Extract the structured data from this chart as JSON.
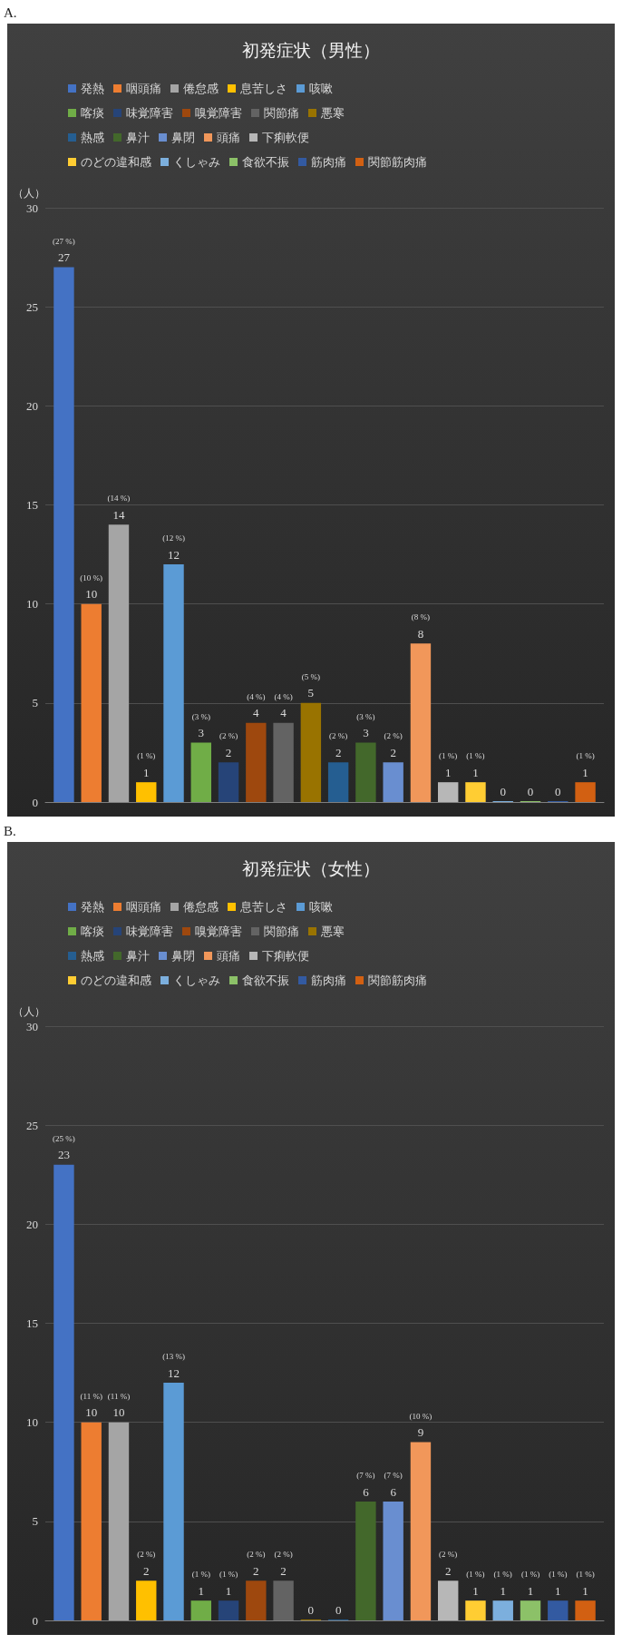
{
  "chart_data": [
    {
      "type": "bar",
      "title": "初発症状（男性）",
      "ylabel": "（人）",
      "categories": [
        null
      ],
      "ylim": [
        0,
        30
      ],
      "yticks": [
        0,
        5,
        10,
        15,
        20,
        25,
        30
      ],
      "grid": "y",
      "legend": "top",
      "tick_labels": "y",
      "data_labels": true,
      "annotations": [
        "A.",
        {
          "text": "(27 %)",
          "y": 27
        },
        {
          "text": "(10 %)",
          "y": 10
        },
        {
          "text": "(14 %)",
          "y": 14
        },
        {
          "text": "(1 %)",
          "y": 1
        },
        {
          "text": "(12 %)",
          "y": 12
        },
        {
          "text": "(3 %)",
          "y": 3
        },
        {
          "text": "(2 %)",
          "y": 2
        },
        {
          "text": "(4 %)",
          "y": 4
        },
        {
          "text": "(4 %)",
          "y": 4
        },
        {
          "text": "(5 %)",
          "y": 5
        },
        {
          "text": "(2 %)",
          "y": 2
        },
        {
          "text": "(3 %)",
          "y": 3
        },
        {
          "text": "(2 %)",
          "y": 2
        },
        {
          "text": "(8 %)",
          "y": 8
        },
        {
          "text": "(1 %)",
          "y": 1
        },
        {
          "text": "(1 %)",
          "y": 1
        },
        {
          "text": "(1 %)",
          "y": 1
        }
      ],
      "series": [
        {
          "name": "発熱",
          "color": "#4472c4",
          "values": [
            27
          ]
        },
        {
          "name": "咽頭痛",
          "color": "#ed7d31",
          "values": [
            10
          ]
        },
        {
          "name": "倦怠感",
          "color": "#a5a5a5",
          "values": [
            14
          ]
        },
        {
          "name": "息苦しさ",
          "color": "#ffc000",
          "values": [
            1
          ]
        },
        {
          "name": "咳嗽",
          "color": "#5b9bd5",
          "values": [
            12
          ]
        },
        {
          "name": "喀痰",
          "color": "#70ad47",
          "values": [
            3
          ]
        },
        {
          "name": "味覚障害",
          "color": "#264478",
          "values": [
            2
          ]
        },
        {
          "name": "嗅覚障害",
          "color": "#9e480e",
          "values": [
            4
          ]
        },
        {
          "name": "関節痛",
          "color": "#636363",
          "values": [
            4
          ]
        },
        {
          "name": "悪寒",
          "color": "#997300",
          "values": [
            5
          ]
        },
        {
          "name": "熱感",
          "color": "#255e91",
          "values": [
            2
          ]
        },
        {
          "name": "鼻汁",
          "color": "#43682b",
          "values": [
            3
          ]
        },
        {
          "name": "鼻閉",
          "color": "#698ed0",
          "values": [
            2
          ]
        },
        {
          "name": "頭痛",
          "color": "#f1975a",
          "values": [
            8
          ]
        },
        {
          "name": "下痢軟便",
          "color": "#b7b7b7",
          "values": [
            1
          ]
        },
        {
          "name": "のどの違和感",
          "color": "#ffcd33",
          "values": [
            1
          ]
        },
        {
          "name": "くしゃみ",
          "color": "#7cafdd",
          "values": [
            0
          ]
        },
        {
          "name": "食欲不振",
          "color": "#8cc168",
          "values": [
            0
          ]
        },
        {
          "name": "筋肉痛",
          "color": "#335aa1",
          "values": [
            0
          ]
        },
        {
          "name": "関節筋肉痛",
          "color": "#d26012",
          "values": [
            1
          ]
        }
      ]
    },
    {
      "type": "bar",
      "title": "初発症状（女性）",
      "ylabel": "（人）",
      "categories": [
        null
      ],
      "ylim": [
        0,
        30
      ],
      "yticks": [
        0,
        5,
        10,
        15,
        20,
        25,
        30
      ],
      "grid": "y",
      "legend": "top",
      "tick_labels": "y",
      "data_labels": true,
      "annotations": [
        "B.",
        {
          "text": "(25 %)",
          "y": 23
        },
        {
          "text": "(11 %)",
          "y": 10
        },
        {
          "text": "(11 %)",
          "y": 10
        },
        {
          "text": "(2 %)",
          "y": 2
        },
        {
          "text": "(13 %)",
          "y": 12
        },
        {
          "text": "(1 %)",
          "y": 1
        },
        {
          "text": "(1 %)",
          "y": 1
        },
        {
          "text": "(2 %)",
          "y": 2
        },
        {
          "text": "(2 %)",
          "y": 2
        },
        {
          "text": "(7 %)",
          "y": 6
        },
        {
          "text": "(7 %)",
          "y": 6
        },
        {
          "text": "(10 %)",
          "y": 9
        },
        {
          "text": "(2 %)",
          "y": 2
        },
        {
          "text": "(1 %)",
          "y": 1
        },
        {
          "text": "(1 %)",
          "y": 1
        },
        {
          "text": "(1 %)",
          "y": 1
        },
        {
          "text": "(1 %)",
          "y": 1
        },
        {
          "text": "(1 %)",
          "y": 1
        }
      ],
      "series": [
        {
          "name": "発熱",
          "color": "#4472c4",
          "values": [
            23
          ]
        },
        {
          "name": "咽頭痛",
          "color": "#ed7d31",
          "values": [
            10
          ]
        },
        {
          "name": "倦怠感",
          "color": "#a5a5a5",
          "values": [
            10
          ]
        },
        {
          "name": "息苦しさ",
          "color": "#ffc000",
          "values": [
            2
          ]
        },
        {
          "name": "咳嗽",
          "color": "#5b9bd5",
          "values": [
            12
          ]
        },
        {
          "name": "喀痰",
          "color": "#70ad47",
          "values": [
            1
          ]
        },
        {
          "name": "味覚障害",
          "color": "#264478",
          "values": [
            1
          ]
        },
        {
          "name": "嗅覚障害",
          "color": "#9e480e",
          "values": [
            2
          ]
        },
        {
          "name": "関節痛",
          "color": "#636363",
          "values": [
            2
          ]
        },
        {
          "name": "悪寒",
          "color": "#997300",
          "values": [
            0
          ]
        },
        {
          "name": "熱感",
          "color": "#255e91",
          "values": [
            0
          ]
        },
        {
          "name": "鼻汁",
          "color": "#43682b",
          "values": [
            6
          ]
        },
        {
          "name": "鼻閉",
          "color": "#698ed0",
          "values": [
            6
          ]
        },
        {
          "name": "頭痛",
          "color": "#f1975a",
          "values": [
            9
          ]
        },
        {
          "name": "下痢軟便",
          "color": "#b7b7b7",
          "values": [
            2
          ]
        },
        {
          "name": "のどの違和感",
          "color": "#ffcd33",
          "values": [
            1
          ]
        },
        {
          "name": "くしゃみ",
          "color": "#7cafdd",
          "values": [
            1
          ]
        },
        {
          "name": "食欲不振",
          "color": "#8cc168",
          "values": [
            1
          ]
        },
        {
          "name": "筋肉痛",
          "color": "#335aa1",
          "values": [
            1
          ]
        },
        {
          "name": "関節筋肉痛",
          "color": "#d26012",
          "values": [
            1
          ]
        }
      ]
    }
  ]
}
